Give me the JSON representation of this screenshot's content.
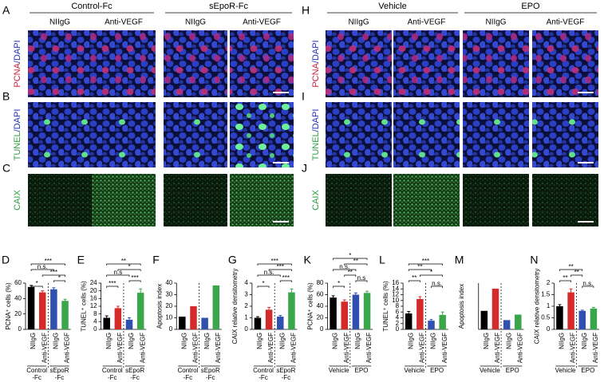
{
  "figure": {
    "left": {
      "groups": [
        "Control-Fc",
        "sEpoR-Fc"
      ],
      "columns": [
        "NIIgG",
        "Anti-VEGF",
        "NIIgG",
        "Anti-VEGF"
      ],
      "rows": [
        {
          "letter": "A",
          "stain": "PCNA",
          "counter": "/DAPI"
        },
        {
          "letter": "B",
          "stain": "TUNEL",
          "counter": "/DAPI"
        },
        {
          "letter": "C",
          "stain": "CAIX"
        }
      ]
    },
    "right": {
      "groups": [
        "Vehicle",
        "EPO"
      ],
      "columns": [
        "NIIgG",
        "Anti-VEGF",
        "NIIgG",
        "Anti-VEGF"
      ],
      "rows": [
        {
          "letter": "H",
          "stain": "PCNA",
          "counter": "/DAPI"
        },
        {
          "letter": "I",
          "stain": "TUNEL",
          "counter": "/DAPI"
        },
        {
          "letter": "J",
          "stain": "CAIX"
        }
      ]
    }
  },
  "chart_data": [
    {
      "type": "bar",
      "letter": "D",
      "ylabel": "PCNA⁺ cells (%)",
      "categories": [
        "NIIgG",
        "Anti-VEGF",
        "NIIgG",
        "Anti-VEGF"
      ],
      "groups": [
        [
          "Control",
          "-Fc"
        ],
        [
          "sEpoR",
          "-Fc"
        ]
      ],
      "colors": [
        "#000000",
        "#d42a2a",
        "#3050b0",
        "#3aa64a"
      ],
      "values": [
        55,
        48,
        52,
        37
      ],
      "errors": [
        2,
        2,
        2,
        2
      ],
      "ylim": [
        0,
        60
      ],
      "yticks": [
        0,
        20,
        40,
        60
      ],
      "comparisons": [
        {
          "label": "*",
          "bars": [
            0,
            1
          ]
        },
        {
          "label": "*",
          "bars": [
            2,
            3
          ]
        },
        {
          "label": "***",
          "bars": [
            1,
            3
          ]
        },
        {
          "label": "n.s.",
          "bars": [
            0,
            2
          ]
        },
        {
          "label": "***",
          "bars": [
            0,
            3
          ]
        }
      ]
    },
    {
      "type": "bar",
      "letter": "E",
      "ylabel": "TUNEL⁺ cells (%)",
      "categories": [
        "NIIgG",
        "Anti-VEGF",
        "NIIgG",
        "Anti-VEGF"
      ],
      "groups": [
        [
          "Control",
          "-Fc"
        ],
        [
          "sEpoR",
          "-Fc"
        ]
      ],
      "colors": [
        "#000000",
        "#d42a2a",
        "#3050b0",
        "#3aa64a"
      ],
      "values": [
        6,
        11,
        5,
        19
      ],
      "errors": [
        1,
        1,
        1,
        2
      ],
      "ylim": [
        0,
        24
      ],
      "yticks": [
        0,
        4,
        8,
        12,
        16,
        20,
        24
      ],
      "comparisons": [
        {
          "label": "***",
          "bars": [
            0,
            1
          ]
        },
        {
          "label": "***",
          "bars": [
            2,
            3
          ]
        },
        {
          "label": "n.s",
          "bars": [
            0,
            2
          ]
        },
        {
          "label": "*",
          "bars": [
            1,
            3
          ]
        },
        {
          "label": "**",
          "bars": [
            0,
            3
          ]
        }
      ]
    },
    {
      "type": "bar",
      "letter": "F",
      "ylabel": "Apoptosis index",
      "categories": [
        "NIIgG",
        "Anti-VEGF",
        "NIIgG",
        "Anti-VEGF"
      ],
      "groups": [
        [
          "Control",
          "-Fc"
        ],
        [
          "sEpoR",
          "-Fc"
        ]
      ],
      "colors": [
        "#000000",
        "#d42a2a",
        "#3050b0",
        "#3aa64a"
      ],
      "values": [
        11,
        20,
        10,
        38
      ],
      "ylim": [
        0,
        40
      ],
      "yticks": [
        0,
        10,
        20,
        30,
        40
      ]
    },
    {
      "type": "bar",
      "letter": "G",
      "ylabel": "CAIX relative densitometry",
      "categories": [
        "NIIgG",
        "Anti-VEGF",
        "NIIgG",
        "Anti-VEGF"
      ],
      "groups": [
        [
          "Control",
          "-Fc"
        ],
        [
          "sEpoR",
          "-Fc"
        ]
      ],
      "colors": [
        "#000000",
        "#d42a2a",
        "#3050b0",
        "#3aa64a"
      ],
      "values": [
        1,
        1.7,
        1.1,
        3.2
      ],
      "errors": [
        0.1,
        0.2,
        0.1,
        0.3
      ],
      "ylim": [
        0,
        4
      ],
      "yticks": [
        0,
        1,
        2,
        3,
        4
      ],
      "comparisons": [
        {
          "label": "*",
          "bars": [
            0,
            1
          ]
        },
        {
          "label": "***",
          "bars": [
            2,
            3
          ]
        },
        {
          "label": "n.s.",
          "bars": [
            0,
            2
          ]
        },
        {
          "label": "***",
          "bars": [
            1,
            3
          ]
        },
        {
          "label": "***",
          "bars": [
            0,
            3
          ]
        }
      ]
    },
    {
      "type": "bar",
      "letter": "K",
      "ylabel": "PCNA⁺ cells (%)",
      "categories": [
        "NIIgG",
        "Anti-VEGF",
        "NIIgG",
        "Anti-VEGF"
      ],
      "groups": [
        [
          "Vehicle"
        ],
        [
          "EPO"
        ]
      ],
      "colors": [
        "#000000",
        "#d42a2a",
        "#3050b0",
        "#3aa64a"
      ],
      "values": [
        55,
        48,
        60,
        63
      ],
      "errors": [
        3,
        3,
        3,
        3
      ],
      "ylim": [
        0,
        80
      ],
      "yticks": [
        0,
        20,
        40,
        60,
        80
      ],
      "comparisons": [
        {
          "label": "*",
          "bars": [
            0,
            1
          ]
        },
        {
          "label": "n.s",
          "bars": [
            2,
            3
          ]
        },
        {
          "label": "**",
          "bars": [
            1,
            2
          ]
        },
        {
          "label": "n.s.",
          "bars": [
            0,
            2
          ]
        },
        {
          "label": "**",
          "bars": [
            1,
            3
          ]
        },
        {
          "label": "*",
          "bars": [
            0,
            3
          ]
        }
      ]
    },
    {
      "type": "bar",
      "letter": "L",
      "ylabel": "TUNEL⁺ cells (%)",
      "categories": [
        "NIIgG",
        "Anti-VEGF",
        "NIIgG",
        "Anti-VEGF"
      ],
      "groups": [
        [
          "Vehicle"
        ],
        [
          "EPO"
        ]
      ],
      "colors": [
        "#000000",
        "#d42a2a",
        "#3050b0",
        "#3aa64a"
      ],
      "values": [
        5.5,
        10.5,
        3,
        5
      ],
      "errors": [
        0.7,
        0.8,
        0.4,
        1
      ],
      "ylim": [
        0,
        16
      ],
      "yticks": [
        0,
        2,
        4,
        6,
        8,
        10,
        12,
        14,
        16
      ],
      "comparisons": [
        {
          "label": "n.s.",
          "bars": [
            2,
            3
          ]
        },
        {
          "label": "**",
          "bars": [
            0,
            1
          ]
        },
        {
          "label": "*",
          "bars": [
            1,
            3
          ]
        },
        {
          "label": "**",
          "bars": [
            0,
            2
          ]
        },
        {
          "label": "***",
          "bars": [
            0,
            3
          ]
        }
      ]
    },
    {
      "type": "bar",
      "letter": "M",
      "ylabel": "Apoptosis index",
      "categories": [
        "NIIgG",
        "Anti-VEGF",
        "NIIgG",
        "Anti-VEGF"
      ],
      "groups": [
        [
          "Vehicle"
        ],
        [
          "EPO"
        ]
      ],
      "colors": [
        "#000000",
        "#d42a2a",
        "#3050b0",
        "#3aa64a"
      ],
      "values": [
        10,
        22,
        5,
        8
      ],
      "ylim": [
        0,
        25
      ]
    },
    {
      "type": "bar",
      "letter": "N",
      "ylabel": "CAIX relative densitometry",
      "categories": [
        "NIIgG",
        "Anti-VEGF",
        "NIIgG",
        "Anti-VEGF"
      ],
      "groups": [
        [
          "Vehicle"
        ],
        [
          "EPO"
        ]
      ],
      "colors": [
        "#000000",
        "#d42a2a",
        "#3050b0",
        "#3aa64a"
      ],
      "values": [
        1,
        1.6,
        0.8,
        0.9
      ],
      "errors": [
        0.07,
        0.15,
        0.03,
        0.05
      ],
      "ylim": [
        0,
        2
      ],
      "yticks": [
        0,
        0.5,
        1,
        1.5,
        2
      ],
      "comparisons": [
        {
          "label": "n.s.",
          "bars": [
            2,
            3
          ]
        },
        {
          "label": "**",
          "bars": [
            0,
            1
          ]
        },
        {
          "label": "**",
          "bars": [
            1,
            2
          ]
        },
        {
          "label": "**",
          "bars": [
            0,
            2
          ]
        }
      ]
    }
  ]
}
